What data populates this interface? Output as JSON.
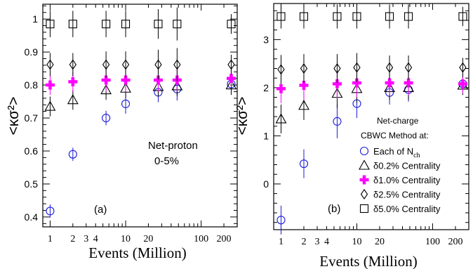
{
  "chart_data": [
    {
      "type": "scatter",
      "panel_label": "(a)",
      "xscale": "log",
      "xlim": [
        0.8,
        300
      ],
      "ylim": [
        0.37,
        1.045
      ],
      "xlabel": "Events (Million)",
      "ylabel": "<κσ²>",
      "x_tick_labels": [
        {
          "x": 1,
          "label": "1"
        },
        {
          "x": 2,
          "label": "2"
        },
        {
          "x": 3,
          "label": "3"
        },
        {
          "x": 4,
          "label": "4"
        },
        {
          "x": 10,
          "label": "10"
        },
        {
          "x": 20,
          "label": "20"
        },
        {
          "x": 100,
          "label": "100"
        },
        {
          "x": 200,
          "label": "200"
        }
      ],
      "y_tick_labels": [
        {
          "y": 0.4,
          "label": "0.4"
        },
        {
          "y": 0.5,
          "label": "0.5"
        },
        {
          "y": 0.6,
          "label": "0.6"
        },
        {
          "y": 0.7,
          "label": "0.7"
        },
        {
          "y": 0.8,
          "label": "0.8"
        },
        {
          "y": 0.9,
          "label": "0.9"
        },
        {
          "y": 1.0,
          "label": "1"
        }
      ],
      "annotations": [
        "Net-proton",
        "0-5%"
      ],
      "series": [
        {
          "name": "Each of N_ch",
          "marker": "circle",
          "color": "#1a1adb",
          "points": [
            [
              1,
              0.418,
              0.02
            ],
            [
              2,
              0.59,
              0.02
            ],
            [
              5.5,
              0.7,
              0.022
            ],
            [
              10,
              0.743,
              0.03
            ],
            [
              27,
              0.778,
              0.03
            ],
            [
              48,
              0.788,
              0.035
            ],
            [
              250,
              0.803,
              0.02
            ]
          ]
        },
        {
          "name": "δ0.2% Centrality",
          "marker": "triangle",
          "color": "#000000",
          "points": [
            [
              1,
              0.735,
              0.03
            ],
            [
              2,
              0.755,
              0.03
            ],
            [
              5.5,
              0.785,
              0.03
            ],
            [
              10,
              0.79,
              0.03
            ],
            [
              27,
              0.795,
              0.03
            ],
            [
              48,
              0.797,
              0.03
            ],
            [
              250,
              0.8,
              0.03
            ]
          ]
        },
        {
          "name": "δ1.0% Centrality",
          "marker": "cross",
          "color": "#ff00ff",
          "points": [
            [
              1,
              0.8,
              0.03
            ],
            [
              2,
              0.81,
              0.03
            ],
            [
              5.5,
              0.815,
              0.035
            ],
            [
              10,
              0.815,
              0.035
            ],
            [
              27,
              0.815,
              0.035
            ],
            [
              48,
              0.815,
              0.035
            ],
            [
              250,
              0.82,
              0.025
            ]
          ]
        },
        {
          "name": "δ2.5% Centrality",
          "marker": "diamond",
          "color": "#000000",
          "points": [
            [
              1,
              0.862,
              0.035
            ],
            [
              2,
              0.862,
              0.035
            ],
            [
              5.5,
              0.862,
              0.04
            ],
            [
              10,
              0.862,
              0.04
            ],
            [
              27,
              0.862,
              0.045
            ],
            [
              48,
              0.862,
              0.05
            ],
            [
              250,
              0.862,
              0.03
            ]
          ]
        },
        {
          "name": "δ5.0% Centrality",
          "marker": "square",
          "color": "#000000",
          "points": [
            [
              1,
              0.985,
              0.04
            ],
            [
              2,
              0.985,
              0.04
            ],
            [
              5.5,
              0.985,
              0.04
            ],
            [
              10,
              0.985,
              0.04
            ],
            [
              27,
              0.985,
              0.045
            ],
            [
              48,
              0.985,
              0.05
            ],
            [
              250,
              0.985,
              0.03
            ]
          ]
        }
      ]
    },
    {
      "type": "scatter",
      "panel_label": "(b)",
      "xscale": "log",
      "xlim": [
        0.8,
        300
      ],
      "ylim": [
        -0.95,
        3.75
      ],
      "xlabel": "Events (Million)",
      "ylabel": "<κσ²>",
      "x_tick_labels": [
        {
          "x": 1,
          "label": "1"
        },
        {
          "x": 2,
          "label": "2"
        },
        {
          "x": 3,
          "label": "3"
        },
        {
          "x": 4,
          "label": "4"
        },
        {
          "x": 10,
          "label": "10"
        },
        {
          "x": 20,
          "label": "20"
        },
        {
          "x": 100,
          "label": "100"
        },
        {
          "x": 200,
          "label": "200"
        }
      ],
      "y_tick_labels": [
        {
          "y": 0,
          "label": "0"
        },
        {
          "y": 1,
          "label": "1"
        },
        {
          "y": 2,
          "label": "2"
        },
        {
          "y": 3,
          "label": "3"
        }
      ],
      "legend_title": [
        "Net-charge",
        "CBWC Method at:"
      ],
      "legend": [
        {
          "marker": "circle",
          "color": "#1a1adb",
          "text": "Each of N",
          "sub": "ch"
        },
        {
          "marker": "triangle",
          "color": "#000000",
          "text": "δ0.2% Centrality"
        },
        {
          "marker": "cross",
          "color": "#ff00ff",
          "text": "δ1.0% Centrality"
        },
        {
          "marker": "diamond",
          "color": "#000000",
          "text": "δ2.5% Centrality"
        },
        {
          "marker": "square",
          "color": "#000000",
          "text": "δ5.0% Centrality"
        }
      ],
      "series": [
        {
          "name": "Each of N_ch",
          "marker": "circle",
          "color": "#1a1adb",
          "points": [
            [
              1,
              -0.75,
              0.3
            ],
            [
              2,
              0.42,
              0.3
            ],
            [
              5.5,
              1.3,
              0.35
            ],
            [
              10,
              1.67,
              0.3
            ],
            [
              27,
              1.9,
              0.25
            ],
            [
              48,
              1.96,
              0.25
            ],
            [
              250,
              2.08,
              0.2
            ]
          ]
        },
        {
          "name": "δ0.2% Centrality",
          "marker": "triangle",
          "color": "#000000",
          "points": [
            [
              1,
              1.35,
              0.3
            ],
            [
              2,
              1.63,
              0.3
            ],
            [
              5.5,
              1.88,
              0.3
            ],
            [
              10,
              1.98,
              0.3
            ],
            [
              27,
              2.0,
              0.25
            ],
            [
              48,
              2.0,
              0.25
            ],
            [
              250,
              2.05,
              0.2
            ]
          ]
        },
        {
          "name": "δ1.0% Centrality",
          "marker": "cross",
          "color": "#ff00ff",
          "points": [
            [
              1,
              1.98,
              0.3
            ],
            [
              2,
              2.05,
              0.3
            ],
            [
              5.5,
              2.08,
              0.3
            ],
            [
              10,
              2.1,
              0.3
            ],
            [
              27,
              2.1,
              0.25
            ],
            [
              48,
              2.1,
              0.25
            ],
            [
              250,
              2.08,
              0.2
            ]
          ]
        },
        {
          "name": "δ2.5% Centrality",
          "marker": "diamond",
          "color": "#000000",
          "points": [
            [
              1,
              2.38,
              0.3
            ],
            [
              2,
              2.4,
              0.3
            ],
            [
              5.5,
              2.4,
              0.3
            ],
            [
              10,
              2.42,
              0.3
            ],
            [
              27,
              2.42,
              0.25
            ],
            [
              48,
              2.42,
              0.25
            ],
            [
              250,
              2.42,
              0.2
            ]
          ]
        },
        {
          "name": "δ5.0% Centrality",
          "marker": "square",
          "color": "#000000",
          "points": [
            [
              1,
              3.48,
              0.25
            ],
            [
              2,
              3.48,
              0.25
            ],
            [
              5.5,
              3.48,
              0.25
            ],
            [
              10,
              3.48,
              0.25
            ],
            [
              27,
              3.48,
              0.25
            ],
            [
              48,
              3.48,
              0.25
            ],
            [
              250,
              3.48,
              0.2
            ]
          ]
        }
      ]
    }
  ]
}
